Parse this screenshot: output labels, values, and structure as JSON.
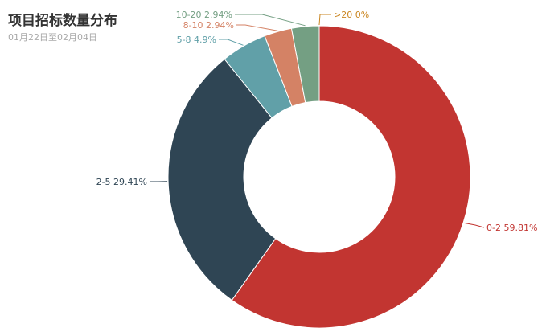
{
  "chart_data": {
    "type": "pie",
    "title": "项目招标数量分布",
    "subtitle": "01月22日至02月04日",
    "inner_radius_ratio": 0.5,
    "start_angle_deg": 90,
    "clockwise": true,
    "legend": "none",
    "slices": [
      {
        "label": "0-2",
        "value": 59.81,
        "display": "0-2 59.81%",
        "color": "#c23531"
      },
      {
        "label": "2-5",
        "value": 29.41,
        "display": "2-5 29.41%",
        "color": "#2f4554"
      },
      {
        "label": "5-8",
        "value": 4.9,
        "display": "5-8 4.9%",
        "color": "#61a0a8"
      },
      {
        "label": "8-10",
        "value": 2.94,
        "display": "8-10 2.94%",
        "color": "#d48265"
      },
      {
        "label": "10-20",
        "value": 2.94,
        "display": "10-20 2.94%",
        "color": "#749f83"
      },
      {
        "label": ">20",
        "value": 0,
        "display": ">20 0%",
        "color": "#ca8622"
      }
    ]
  }
}
